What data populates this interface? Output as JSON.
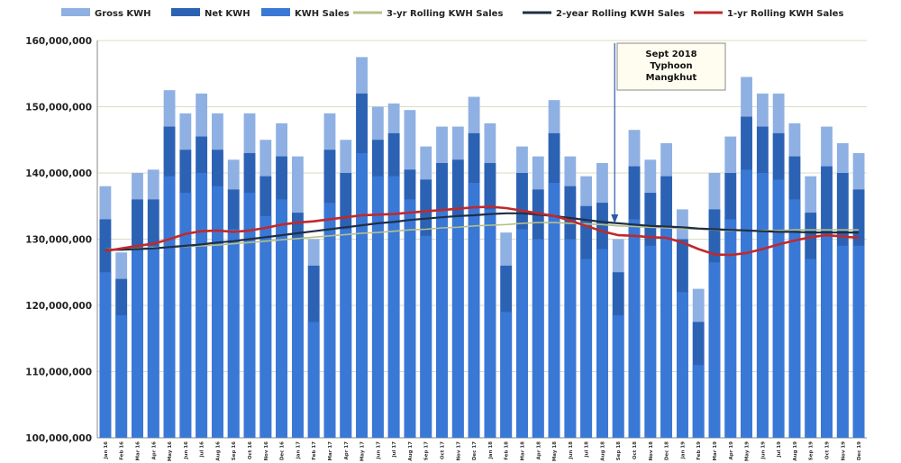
{
  "chart_data": {
    "type": "bar",
    "colors": {
      "gross": "#8fb0e3",
      "net": "#2c62b4",
      "sales": "#3a78d6",
      "rolling3": "#b5c08a",
      "rolling2": "#1f2f45",
      "rolling1": "#c0292c",
      "grid": "#d9dcc0"
    },
    "ylim": [
      100000000,
      160000000
    ],
    "y_ticks": [
      {
        "value": 100000000,
        "label": "100,000,000"
      },
      {
        "value": 110000000,
        "label": "110,000,000"
      },
      {
        "value": 120000000,
        "label": "120,000,000"
      },
      {
        "value": 130000000,
        "label": "130,000,000"
      },
      {
        "value": 140000000,
        "label": "140,000,000"
      },
      {
        "value": 150000000,
        "label": "150,000,000"
      },
      {
        "value": 160000000,
        "label": "160,000,000"
      }
    ],
    "categories": [
      "Jan 16",
      "Feb 16",
      "Mar 16",
      "Apr 16",
      "May 16",
      "Jun 16",
      "Jul 16",
      "Aug 16",
      "Sep 16",
      "Oct 16",
      "Nov 16",
      "Dec 16",
      "Jan 17",
      "Feb 17",
      "Mar 17",
      "Apr 17",
      "May 17",
      "Jun 17",
      "Jul 17",
      "Aug 17",
      "Sep 17",
      "Oct 17",
      "Nov 17",
      "Dec 17",
      "Jan 18",
      "Feb 18",
      "Mar 18",
      "Apr 18",
      "May 18",
      "Jun 18",
      "Jul 18",
      "Aug 18",
      "Sep 18",
      "Oct 18",
      "Nov 18",
      "Dec 18",
      "Jan 19",
      "Feb 19",
      "Mar 19",
      "Apr 19",
      "May 19",
      "Jun 19",
      "Jul 19",
      "Aug 19",
      "Sep 19",
      "Oct 19",
      "Nov 19",
      "Dec 19"
    ],
    "legend": [
      {
        "name": "Gross KWH",
        "kind": "bar",
        "color_key": "gross"
      },
      {
        "name": "Net KWH",
        "kind": "bar",
        "color_key": "net"
      },
      {
        "name": "KWH Sales",
        "kind": "bar",
        "color_key": "sales"
      },
      {
        "name": "3-yr Rolling KWH Sales",
        "kind": "line",
        "color_key": "rolling3"
      },
      {
        "name": "2-year Rolling KWH Sales",
        "kind": "line",
        "color_key": "rolling2"
      },
      {
        "name": "1-yr Rolling KWH Sales",
        "kind": "line",
        "color_key": "rolling1"
      }
    ],
    "series": [
      {
        "name": "Gross KWH",
        "values": [
          138000000,
          128000000,
          140000000,
          140500000,
          152500000,
          149000000,
          152000000,
          149000000,
          142000000,
          149000000,
          145000000,
          147500000,
          142500000,
          130000000,
          149000000,
          145000000,
          157500000,
          150000000,
          150500000,
          149500000,
          144000000,
          147000000,
          147000000,
          151500000,
          147500000,
          131000000,
          144000000,
          142500000,
          151000000,
          142500000,
          139500000,
          141500000,
          130000000,
          146500000,
          142000000,
          144500000,
          134500000,
          122500000,
          140000000,
          145500000,
          154500000,
          152000000,
          152000000,
          147500000,
          139500000,
          147000000,
          144500000,
          143000000
        ]
      },
      {
        "name": "Net KWH",
        "values": [
          133000000,
          124000000,
          136000000,
          136000000,
          147000000,
          143500000,
          145500000,
          143500000,
          137500000,
          143000000,
          139500000,
          142500000,
          134000000,
          126000000,
          143500000,
          140000000,
          152000000,
          145000000,
          146000000,
          140500000,
          139000000,
          141500000,
          142000000,
          146000000,
          141500000,
          126000000,
          140000000,
          137500000,
          146000000,
          138000000,
          135000000,
          135500000,
          125000000,
          141000000,
          137000000,
          139500000,
          130000000,
          117500000,
          134500000,
          140000000,
          148500000,
          147000000,
          146000000,
          142500000,
          134000000,
          141000000,
          140000000,
          137500000
        ]
      },
      {
        "name": "KWH Sales",
        "values": [
          125000000,
          118500000,
          128500000,
          129000000,
          139500000,
          137000000,
          140000000,
          138000000,
          131500000,
          137000000,
          133500000,
          136000000,
          130000000,
          117500000,
          135500000,
          131500000,
          143000000,
          139500000,
          139500000,
          136000000,
          130500000,
          134500000,
          133500000,
          138500000,
          134500000,
          119000000,
          131500000,
          130000000,
          138500000,
          130000000,
          127000000,
          128500000,
          118500000,
          133000000,
          129000000,
          132000000,
          122000000,
          111000000,
          126500000,
          133000000,
          140500000,
          140000000,
          139000000,
          136000000,
          127000000,
          131000000,
          129000000,
          129000000
        ]
      },
      {
        "name": "3-yr Rolling KWH Sales",
        "values": [
          128500000,
          128500000,
          128600000,
          128700000,
          128800000,
          128900000,
          129000000,
          129100000,
          129300000,
          129500000,
          129700000,
          129900000,
          130100000,
          130300000,
          130500000,
          130700000,
          130900000,
          131000000,
          131200000,
          131400000,
          131500000,
          131700000,
          131800000,
          132000000,
          132100000,
          132200000,
          132400000,
          132500000,
          132500000,
          132400000,
          132300000,
          132200000,
          132000000,
          131900000,
          131800000,
          131700000,
          131600000,
          131500000,
          131400000,
          131300000,
          131300000,
          131300000,
          131300000,
          131400000,
          131400000,
          131400000,
          131400000,
          131400000
        ]
      },
      {
        "name": "2-year Rolling KWH Sales",
        "values": [
          128400000,
          128400000,
          128500000,
          128600000,
          128800000,
          129000000,
          129200000,
          129500000,
          129700000,
          130000000,
          130300000,
          130600000,
          130900000,
          131200000,
          131500000,
          131800000,
          132100000,
          132400000,
          132600000,
          132900000,
          133100000,
          133300000,
          133500000,
          133600000,
          133800000,
          133900000,
          133900000,
          133700000,
          133500000,
          133200000,
          132900000,
          132600000,
          132400000,
          132200000,
          132000000,
          131900000,
          131800000,
          131600000,
          131500000,
          131400000,
          131300000,
          131200000,
          131100000,
          131100000,
          131000000,
          131000000,
          131000000,
          131000000
        ]
      },
      {
        "name": "1-yr Rolling KWH Sales",
        "values": [
          128200000,
          128600000,
          129000000,
          129300000,
          130000000,
          130800000,
          131200000,
          131300000,
          131100000,
          131300000,
          131700000,
          132200000,
          132500000,
          132700000,
          133000000,
          133300000,
          133600000,
          133700000,
          133800000,
          134000000,
          134200000,
          134400000,
          134600000,
          134800000,
          134900000,
          134700000,
          134300000,
          133900000,
          133500000,
          132800000,
          132000000,
          131200000,
          130600000,
          130500000,
          130300000,
          130200000,
          129500000,
          128500000,
          127700000,
          127600000,
          127900000,
          128500000,
          129200000,
          129800000,
          130300000,
          130600000,
          130400000,
          130200000
        ]
      }
    ],
    "annotation": {
      "lines": [
        "Sept 2018",
        "Typhoon",
        "Mangkhut"
      ],
      "category_index": 32
    }
  }
}
